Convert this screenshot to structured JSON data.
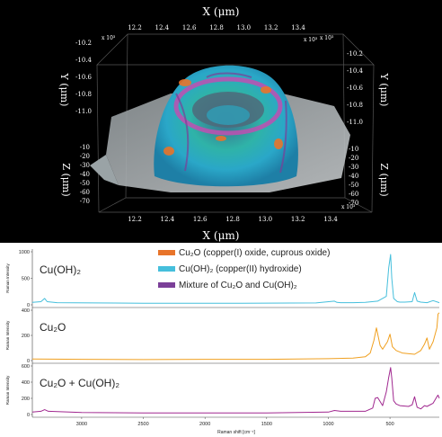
{
  "surface_plot": {
    "x_axis_title": "X (μm)",
    "x_ticks": [
      "12.2",
      "12.4",
      "12.6",
      "12.8",
      "13.0",
      "13.2",
      "13.4"
    ],
    "x_exponent": "x 10³",
    "y_axis_title": "Y (μm)",
    "y_ticks": [
      "-10.2",
      "-10.4",
      "-10.6",
      "-10.8",
      "-11.0"
    ],
    "y_exponent": "x 10³",
    "z_axis_title": "Z (μm)",
    "z_ticks": [
      "-10",
      "-20",
      "-30",
      "-40",
      "-50",
      "-60",
      "-70"
    ]
  },
  "legend": {
    "items": [
      {
        "label": "Cu₂O (copper(I) oxide, cuprous oxide)",
        "color": "#e8742a"
      },
      {
        "label": "Cu(OH)₂ (copper(II) hydroxide)",
        "color": "#45bfdc"
      },
      {
        "label": "Mixture of Cu₂O and Cu(OH)₂",
        "color": "#7b3f98"
      }
    ]
  },
  "chart_data": {
    "type": "line",
    "xlabel": "Raman shift [cm⁻¹]",
    "ylabel": "Raman Intensity",
    "x_reversed": true,
    "xlim": [
      3400,
      100
    ],
    "x_ticks": [
      3000,
      2500,
      2000,
      1500,
      1000,
      500
    ],
    "panels": [
      {
        "name": "Cu(OH)₂",
        "color": "#45bfdc",
        "ylim": [
          0,
          1000
        ],
        "y_ticks": [
          0,
          500,
          1000
        ],
        "x": [
          3400,
          3330,
          3300,
          3280,
          3200,
          2900,
          2500,
          2200,
          1700,
          1100,
          950,
          930,
          900,
          800,
          700,
          600,
          530,
          510,
          495,
          485,
          470,
          440,
          420,
          380,
          320,
          300,
          280,
          250,
          200,
          150,
          100
        ],
        "values": [
          45,
          60,
          120,
          60,
          40,
          35,
          30,
          30,
          30,
          35,
          70,
          45,
          40,
          40,
          45,
          70,
          160,
          700,
          950,
          500,
          120,
          60,
          50,
          50,
          60,
          230,
          70,
          50,
          40,
          80,
          40
        ]
      },
      {
        "name": "Cu₂O",
        "color": "#f0a020",
        "ylim": [
          0,
          400
        ],
        "y_ticks": [
          0,
          200,
          400
        ],
        "x": [
          3400,
          3000,
          2500,
          2000,
          1500,
          1000,
          800,
          700,
          660,
          630,
          610,
          580,
          560,
          520,
          500,
          480,
          450,
          400,
          300,
          250,
          220,
          200,
          180,
          150,
          120,
          110,
          100
        ],
        "values": [
          12,
          10,
          8,
          10,
          10,
          15,
          20,
          30,
          60,
          160,
          260,
          120,
          90,
          150,
          210,
          110,
          80,
          60,
          50,
          80,
          130,
          180,
          90,
          150,
          260,
          370,
          380
        ]
      },
      {
        "name": "Cu₂O + Cu(OH)₂",
        "color": "#a0278f",
        "ylim": [
          0,
          600
        ],
        "y_ticks": [
          0,
          200,
          400,
          600
        ],
        "x": [
          3400,
          3330,
          3300,
          3270,
          3000,
          2500,
          2000,
          1500,
          1000,
          950,
          900,
          700,
          640,
          620,
          600,
          560,
          530,
          510,
          495,
          485,
          470,
          450,
          420,
          350,
          320,
          300,
          280,
          250,
          220,
          200,
          150,
          120,
          110,
          100
        ],
        "values": [
          30,
          40,
          60,
          40,
          25,
          20,
          20,
          20,
          30,
          50,
          40,
          40,
          80,
          200,
          210,
          110,
          280,
          460,
          580,
          450,
          170,
          130,
          110,
          100,
          120,
          220,
          90,
          70,
          110,
          100,
          140,
          220,
          240,
          200
        ]
      }
    ]
  }
}
